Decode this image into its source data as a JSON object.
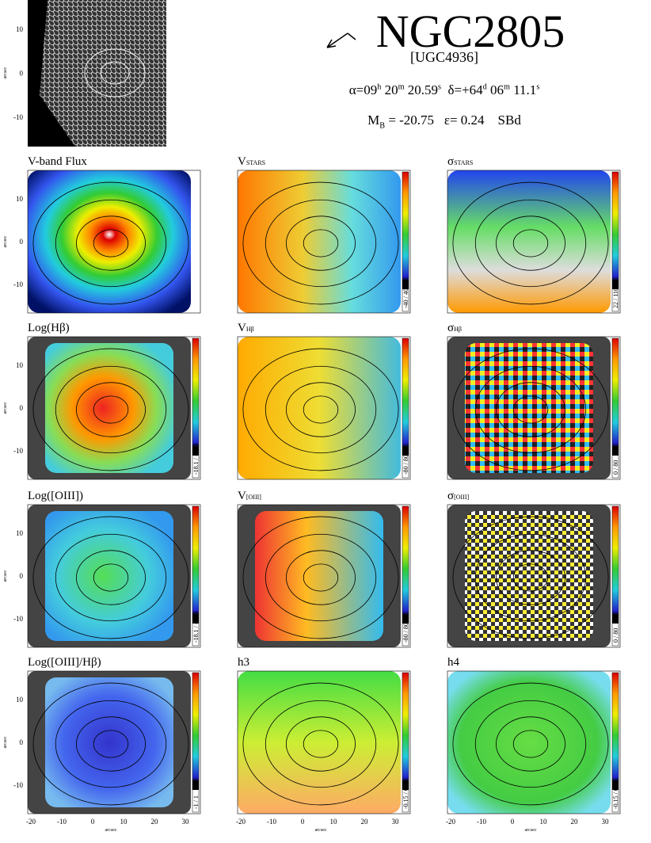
{
  "header": {
    "title": "NGC2805",
    "subtitle": "[UGC4936]",
    "coords": [
      "α=09",
      "h",
      " 20",
      "m",
      " 20.59",
      "s",
      "δ=+64",
      "d",
      " 06",
      "m",
      " 11.1",
      "s"
    ],
    "props": [
      "M",
      "B",
      " = -20.75",
      "ε= 0.24",
      "SBd"
    ]
  },
  "axes": {
    "label": "arcsec",
    "yticks": [
      10,
      0,
      -10
    ],
    "xticks": [
      -20,
      -10,
      0,
      10,
      20,
      30
    ]
  },
  "panels": [
    {
      "title": "V-band Flux"
    },
    {
      "title": "V",
      "sub": "STARS",
      "range": "-40 / 40"
    },
    {
      "title": "σ",
      "sub": "STARS",
      "range": "22 / 116"
    },
    {
      "title": "Log(Hβ)",
      "range": "-18.1 / -15.3"
    },
    {
      "title": "V",
      "sub": "Hβ",
      "range": "-80 / 80"
    },
    {
      "title": "σ",
      "sub": "Hβ",
      "range": "0 / 80"
    },
    {
      "title": "Log([OIII])",
      "range": "-18.1 / -15.3"
    },
    {
      "title": "V",
      "sub": "[OIII]",
      "range": "-80 / 80"
    },
    {
      "title": "σ",
      "sub": "[OIII]",
      "range": "0 / 80"
    },
    {
      "title": "Log([OIII]/Hβ)",
      "range": "-1 / 1"
    },
    {
      "title": "h3",
      "range": "-0.15 / 0.15"
    },
    {
      "title": "h4",
      "range": "-0.15 / 0.15"
    }
  ]
}
